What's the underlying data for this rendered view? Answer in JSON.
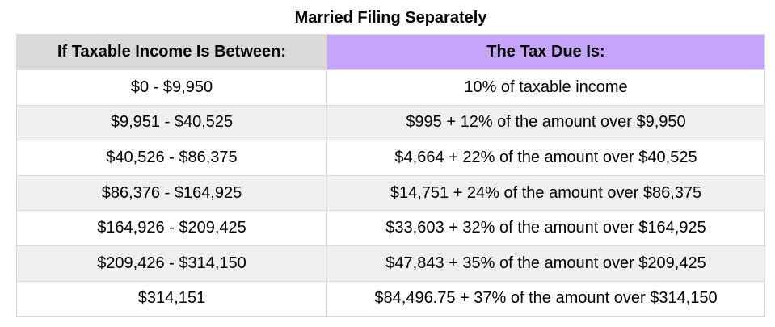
{
  "title": "Married Filing Separately",
  "headers": [
    "If Taxable Income Is Between:",
    "The Tax Due Is:"
  ],
  "colors": {
    "header_left_bg": "#d9d9d9",
    "header_right_bg": "#c6a4f9",
    "alt_row_bg": "#efefef",
    "border": "#d9d9d9"
  },
  "rows": [
    {
      "range": "$0 - $9,950",
      "tax": "10% of taxable income"
    },
    {
      "range": "$9,951 - $40,525",
      "tax": "$995 + 12% of the amount over $9,950"
    },
    {
      "range": "$40,526 - $86,375",
      "tax": "$4,664 + 22% of the amount over $40,525"
    },
    {
      "range": "$86,376 - $164,925",
      "tax": "$14,751 + 24% of the amount over $86,375"
    },
    {
      "range": "$164,926 - $209,425",
      "tax": "$33,603 + 32% of the amount over $164,925"
    },
    {
      "range": "$209,426 - $314,150",
      "tax": "$47,843 + 35% of the amount over $209,425"
    },
    {
      "range": "$314,151",
      "tax": "$84,496.75 + 37% of the amount over $314,150"
    }
  ]
}
